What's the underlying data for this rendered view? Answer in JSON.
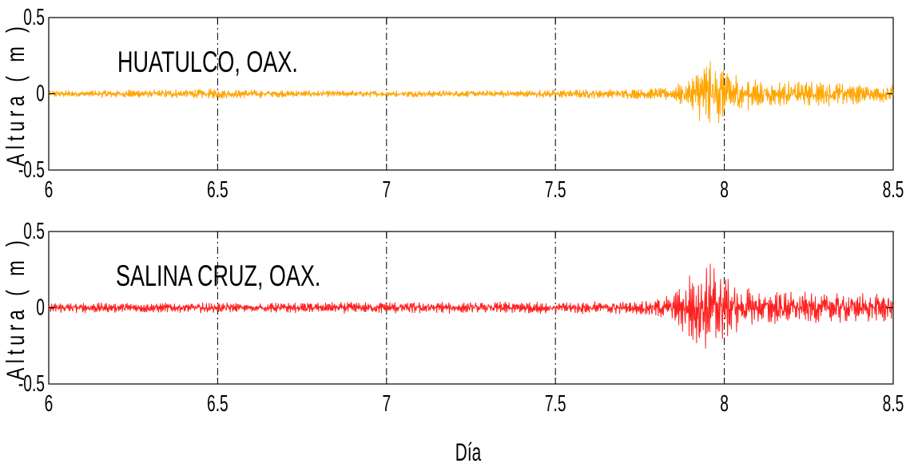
{
  "chart_data": [
    {
      "type": "line",
      "annotation": "HUATULCO, OAX.",
      "ylabel": "Altura ( m )",
      "xlabel": "",
      "xlim": [
        6,
        8.5
      ],
      "ylim": [
        -0.5,
        0.5
      ],
      "xticks": [
        "6",
        "6.5",
        "7",
        "7.5",
        "8",
        "8.5"
      ],
      "yticks": [
        "-0.5",
        "0",
        "0.5"
      ],
      "grid_x": true,
      "line_color": "#FFA500",
      "series": [
        {
          "x": [
            6.0,
            6.25,
            6.5,
            6.75,
            7.0,
            7.25,
            7.5,
            7.75,
            7.85,
            7.9,
            7.95,
            7.97,
            8.0,
            8.05,
            8.1,
            8.2,
            8.3,
            8.4,
            8.5
          ],
          "amplitude": [
            0.02,
            0.025,
            0.03,
            0.02,
            0.02,
            0.02,
            0.025,
            0.03,
            0.04,
            0.1,
            0.2,
            0.2,
            0.15,
            0.1,
            0.08,
            0.07,
            0.07,
            0.06,
            0.05
          ]
        }
      ]
    },
    {
      "type": "line",
      "annotation": "SALINA CRUZ, OAX.",
      "ylabel": "Altura ( m )",
      "xlabel": "Día",
      "xlim": [
        6,
        8.5
      ],
      "ylim": [
        -0.5,
        0.5
      ],
      "xticks": [
        "6",
        "6.5",
        "7",
        "7.5",
        "8",
        "8.5"
      ],
      "yticks": [
        "-0.5",
        "0",
        "0.5"
      ],
      "grid_x": true,
      "line_color": "#FF2020",
      "series": [
        {
          "x": [
            6.0,
            6.25,
            6.5,
            6.75,
            7.0,
            7.25,
            7.5,
            7.75,
            7.85,
            7.9,
            7.93,
            7.97,
            8.0,
            8.05,
            8.1,
            8.2,
            8.3,
            8.4,
            8.5
          ],
          "amplitude": [
            0.03,
            0.03,
            0.03,
            0.03,
            0.035,
            0.035,
            0.035,
            0.04,
            0.08,
            0.2,
            0.27,
            0.25,
            0.2,
            0.12,
            0.1,
            0.09,
            0.09,
            0.09,
            0.08
          ]
        }
      ]
    }
  ]
}
